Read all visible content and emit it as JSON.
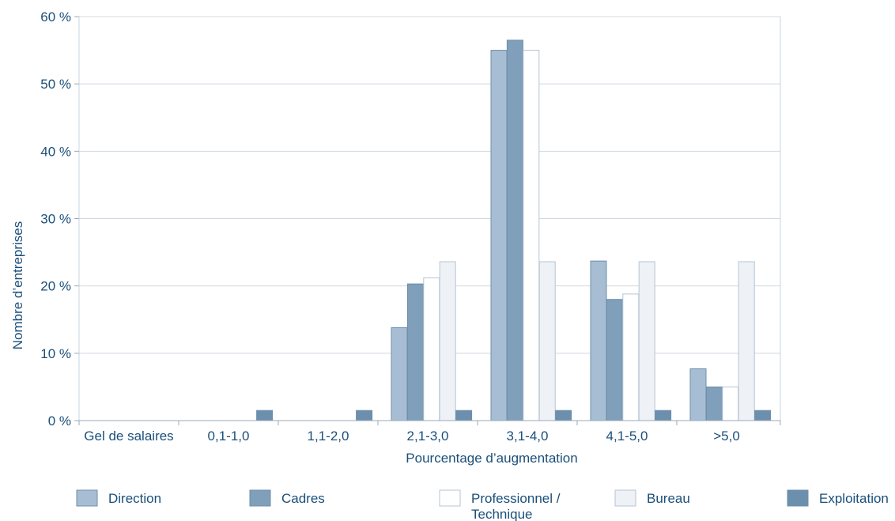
{
  "chart_data": {
    "type": "bar",
    "title": "",
    "xlabel": "Pourcentage d’augmentation",
    "ylabel": "Nombre d’entreprises",
    "ylim": [
      0,
      60
    ],
    "yticks": [
      0,
      10,
      20,
      30,
      40,
      50,
      60
    ],
    "ytick_labels": [
      "0 %",
      "10 %",
      "20 %",
      "30 %",
      "40 %",
      "50 %",
      "60 %"
    ],
    "grid": true,
    "legend_position": "bottom",
    "categories": [
      "Gel de salaires",
      "0,1-1,0",
      "1,1-2,0",
      "2,1-3,0",
      "3,1-4,0",
      "4,1-5,0",
      ">5,0"
    ],
    "series": [
      {
        "name": "Direction",
        "color": "#a7bdd3",
        "values": [
          0,
          0,
          0,
          13.8,
          55,
          23.7,
          7.7
        ]
      },
      {
        "name": "Cadres",
        "color": "#7f9fbb",
        "values": [
          0,
          0,
          0,
          20.3,
          56.5,
          18,
          5
        ]
      },
      {
        "name": "Professionnel / Technique",
        "color": "#ffffff",
        "values": [
          0,
          0,
          0,
          21.2,
          55,
          18.8,
          5
        ]
      },
      {
        "name": "Bureau",
        "color": "#eef2f7",
        "values": [
          0,
          0,
          0,
          23.6,
          23.6,
          23.6,
          23.6
        ]
      },
      {
        "name": "Exploitation",
        "color": "#6b8fad",
        "values": [
          0,
          1.5,
          1.5,
          1.5,
          1.5,
          1.5,
          1.5
        ]
      }
    ]
  }
}
